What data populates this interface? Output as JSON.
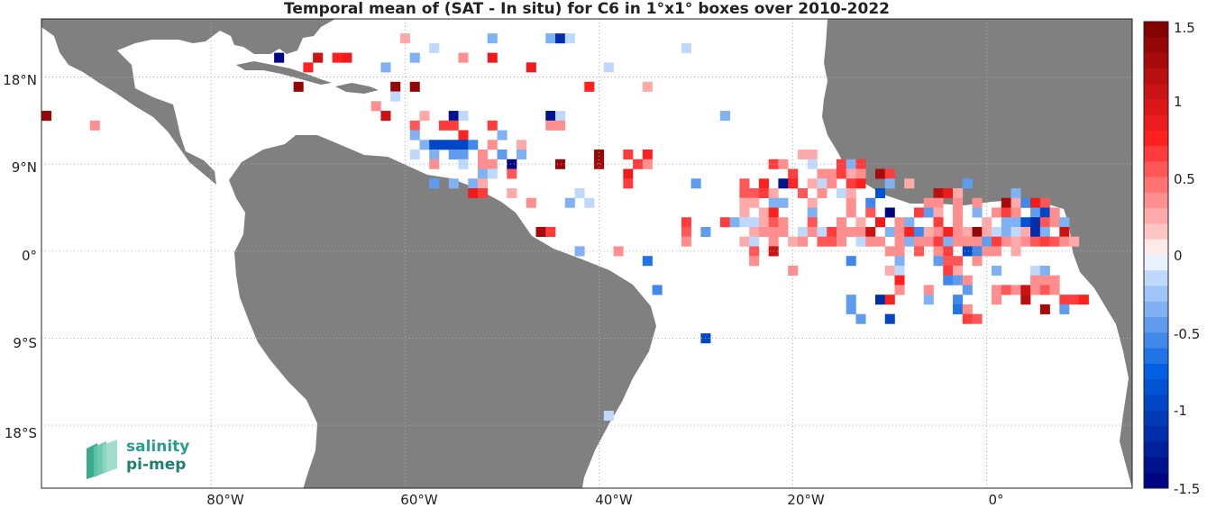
{
  "title": "Temporal mean of (SAT - In situ) for C6 in 1°x1° boxes over 2010-2022",
  "logo": {
    "line1": "salinity",
    "line2": "pi-mep"
  },
  "axes": {
    "x_ticks": [
      "80°W",
      "60°W",
      "40°W",
      "20°W",
      "0°"
    ],
    "y_ticks": [
      "18°N",
      "9°N",
      "0°",
      "9°S",
      "18°S"
    ]
  },
  "colorbar": {
    "ticks": [
      "1.5",
      "1",
      "0.5",
      "0",
      "-0.5",
      "-1",
      "-1.5"
    ],
    "min": -1.5,
    "max": 1.5,
    "levels": 30,
    "colors": {
      "neg_strong": "#00007a",
      "neg_mid": "#0060e0",
      "neg_light": "#cfe3ff",
      "zero": "#ffffff",
      "pos_light": "#ffd4d4",
      "pos_mid": "#ff2020",
      "pos_strong": "#7a0000"
    }
  },
  "land_color": "#808080",
  "chart_data": {
    "type": "heatmap",
    "title": "Temporal mean of (SAT - In situ) for C6 in 1°x1° boxes over 2010-2022",
    "x_range_lon": [
      -97.5,
      15
    ],
    "y_range_lat": [
      -24.5,
      24
    ],
    "value_range": [
      -1.5,
      1.5
    ],
    "cells": [
      [
        -60,
        22,
        0.2
      ],
      [
        -51,
        22,
        -0.3
      ],
      [
        -45,
        22,
        -0.3
      ],
      [
        -44,
        22,
        -1.2
      ],
      [
        -43,
        22,
        -0.2
      ],
      [
        -57,
        21,
        -0.2
      ],
      [
        -31,
        21,
        -0.2
      ],
      [
        -73,
        20,
        -1.5
      ],
      [
        -69,
        20,
        1.0
      ],
      [
        -67,
        20,
        0.8
      ],
      [
        -66,
        20,
        0.9
      ],
      [
        -59,
        20,
        -0.3
      ],
      [
        -54,
        20,
        0.4
      ],
      [
        -51,
        20,
        0.9
      ],
      [
        -47,
        19,
        0.9
      ],
      [
        -70,
        19,
        0.8
      ],
      [
        -62,
        19,
        -0.3
      ],
      [
        -39,
        19,
        -0.2
      ],
      [
        -41,
        17,
        0.8
      ],
      [
        -35,
        17,
        0.2
      ],
      [
        -71,
        17,
        1.4
      ],
      [
        -61,
        17,
        1.4
      ],
      [
        -59,
        17,
        1.4
      ],
      [
        -61,
        16,
        -0.2
      ],
      [
        -63,
        15,
        0.3
      ],
      [
        -97,
        14,
        1.4
      ],
      [
        -62,
        14,
        1.0
      ],
      [
        -58,
        14,
        0.2
      ],
      [
        -55,
        14,
        -1.3
      ],
      [
        -54,
        14,
        -0.2
      ],
      [
        -45,
        14,
        -1.4
      ],
      [
        -44,
        14,
        -0.2
      ],
      [
        -27,
        14,
        -0.3
      ],
      [
        -92,
        13,
        0.3
      ],
      [
        -59,
        13,
        0.5
      ],
      [
        -56,
        13,
        0.6
      ],
      [
        -55,
        13,
        0.6
      ],
      [
        -51,
        13,
        0.6
      ],
      [
        -45,
        13,
        0.4
      ],
      [
        -44,
        13,
        0.4
      ],
      [
        -59,
        12,
        -0.3
      ],
      [
        -54,
        12,
        0.7
      ],
      [
        -50,
        12,
        -0.3
      ],
      [
        -58,
        11,
        -0.3
      ],
      [
        -57,
        11,
        -0.9
      ],
      [
        -56,
        11,
        -0.9
      ],
      [
        -55,
        11,
        -0.9
      ],
      [
        -54,
        11,
        -0.9
      ],
      [
        -53,
        11,
        -0.6
      ],
      [
        -51,
        11,
        0.4
      ],
      [
        -48,
        11,
        0.2
      ],
      [
        -59,
        10,
        -0.2
      ],
      [
        -57,
        10,
        -0.3
      ],
      [
        -55,
        10,
        -0.5
      ],
      [
        -54,
        10,
        -0.5
      ],
      [
        -52,
        10,
        0.4
      ],
      [
        -50,
        10,
        -0.5
      ],
      [
        -48,
        10,
        -0.4
      ],
      [
        -40,
        10,
        1.4
      ],
      [
        -37,
        10,
        0.6
      ],
      [
        -35,
        10,
        0.8
      ],
      [
        -19,
        10,
        0.2
      ],
      [
        -18,
        10,
        0.2
      ],
      [
        -57,
        9,
        0.3
      ],
      [
        -54,
        9,
        -0.2
      ],
      [
        -52,
        9,
        0.4
      ],
      [
        -51,
        9,
        0.4
      ],
      [
        -49,
        9,
        -1.5
      ],
      [
        -44,
        9,
        1.4
      ],
      [
        -40,
        9,
        1.3
      ],
      [
        -36,
        9,
        0.6
      ],
      [
        -35,
        9,
        0.4
      ],
      [
        -22,
        9,
        0.6
      ],
      [
        -21,
        9,
        0.4
      ],
      [
        -18,
        9,
        -0.2
      ],
      [
        -15,
        9,
        0.6
      ],
      [
        -14,
        9,
        -0.3
      ],
      [
        -13,
        9,
        0.6
      ],
      [
        -52,
        8,
        -0.3
      ],
      [
        -51,
        8,
        -0.2
      ],
      [
        -49,
        8,
        0.5
      ],
      [
        -37,
        8,
        0.9
      ],
      [
        -20,
        8,
        0.6
      ],
      [
        -17,
        8,
        0.4
      ],
      [
        -16,
        8,
        0.3
      ],
      [
        -15,
        8,
        0.6
      ],
      [
        -14,
        8,
        0.2
      ],
      [
        -13,
        8,
        0.4
      ],
      [
        -11,
        8,
        1.3
      ],
      [
        -10,
        8,
        0.6
      ],
      [
        -57,
        7,
        -0.5
      ],
      [
        -55,
        7,
        -0.4
      ],
      [
        -53,
        7,
        -0.4
      ],
      [
        -52,
        7,
        0.2
      ],
      [
        -37,
        7,
        0.6
      ],
      [
        -30,
        7,
        -0.5
      ],
      [
        -25,
        7,
        0.5
      ],
      [
        -23,
        7,
        0.7
      ],
      [
        -21,
        7,
        -1.3
      ],
      [
        -20,
        7,
        0.8
      ],
      [
        -18,
        7,
        0.2
      ],
      [
        -17,
        7,
        -0.2
      ],
      [
        -16,
        7,
        0.3
      ],
      [
        -14,
        7,
        0.6
      ],
      [
        -13,
        7,
        0.8
      ],
      [
        -10,
        7,
        -0.4
      ],
      [
        -8,
        7,
        0.2
      ],
      [
        -2,
        7,
        -0.5
      ],
      [
        -53,
        6,
        0.9
      ],
      [
        -52,
        6,
        0.6
      ],
      [
        -49,
        6,
        0.2
      ],
      [
        -42,
        6,
        -0.2
      ],
      [
        -25,
        6,
        0.5
      ],
      [
        -24,
        6,
        0.5
      ],
      [
        -23,
        6,
        0.6
      ],
      [
        -22,
        6,
        0.2
      ],
      [
        -19,
        6,
        0.5
      ],
      [
        -17,
        6,
        0.3
      ],
      [
        -15,
        6,
        -0.2
      ],
      [
        -14,
        6,
        0.2
      ],
      [
        -11,
        6,
        -0.8
      ],
      [
        -5,
        6,
        1.1
      ],
      [
        -4,
        6,
        0.9
      ],
      [
        -3,
        6,
        0.2
      ],
      [
        3,
        6,
        -0.3
      ],
      [
        -47,
        5,
        0.3
      ],
      [
        -43,
        5,
        -0.3
      ],
      [
        -41,
        5,
        -0.2
      ],
      [
        -25,
        5,
        0.2
      ],
      [
        -24,
        5,
        0.2
      ],
      [
        -22,
        5,
        -0.3
      ],
      [
        -21,
        5,
        -0.4
      ],
      [
        -18,
        5,
        0.2
      ],
      [
        -14,
        5,
        0.4
      ],
      [
        -12,
        5,
        -0.6
      ],
      [
        -6,
        5,
        0.4
      ],
      [
        -5,
        5,
        0.3
      ],
      [
        -3,
        5,
        0.4
      ],
      [
        -1,
        5,
        0.3
      ],
      [
        2,
        5,
        1.2
      ],
      [
        3,
        5,
        0.2
      ],
      [
        4,
        5,
        -0.6
      ],
      [
        5,
        5,
        0.9
      ],
      [
        6,
        5,
        0.5
      ],
      [
        -25,
        4,
        0.2
      ],
      [
        -23,
        4,
        0.2
      ],
      [
        -22,
        4,
        0.7
      ],
      [
        -18,
        4,
        -0.3
      ],
      [
        -14,
        4,
        0.4
      ],
      [
        -12,
        4,
        0.5
      ],
      [
        -10,
        4,
        -1.5
      ],
      [
        -7,
        4,
        0.6
      ],
      [
        -6,
        4,
        -0.5
      ],
      [
        -5,
        4,
        0.2
      ],
      [
        -3,
        4,
        0.3
      ],
      [
        -1,
        4,
        -0.4
      ],
      [
        1,
        4,
        0.3
      ],
      [
        2,
        4,
        0.6
      ],
      [
        3,
        4,
        0.4
      ],
      [
        5,
        4,
        -0.5
      ],
      [
        6,
        4,
        -0.9
      ],
      [
        7,
        4,
        0.3
      ],
      [
        -31,
        3,
        0.6
      ],
      [
        -27,
        3,
        0.6
      ],
      [
        -26,
        3,
        -0.4
      ],
      [
        -25,
        3,
        -0.2
      ],
      [
        -24,
        3,
        -0.2
      ],
      [
        -23,
        3,
        0.2
      ],
      [
        -22,
        3,
        0.5
      ],
      [
        -21,
        3,
        0.3
      ],
      [
        -18,
        3,
        0.5
      ],
      [
        -15,
        3,
        0.3
      ],
      [
        -13,
        3,
        0.2
      ],
      [
        -11,
        3,
        0.9
      ],
      [
        -9,
        3,
        0.4
      ],
      [
        -8,
        3,
        -0.3
      ],
      [
        -5,
        3,
        0.6
      ],
      [
        -3,
        3,
        0.3
      ],
      [
        0,
        3,
        0.2
      ],
      [
        2,
        3,
        -0.4
      ],
      [
        3,
        3,
        -0.4
      ],
      [
        4,
        3,
        -0.8
      ],
      [
        5,
        3,
        -1.2
      ],
      [
        6,
        3,
        0.5
      ],
      [
        7,
        3,
        0.4
      ],
      [
        8,
        3,
        -0.3
      ],
      [
        -46,
        2,
        1.3
      ],
      [
        -45,
        2,
        0.6
      ],
      [
        -31,
        2,
        0.5
      ],
      [
        -29,
        2,
        -0.5
      ],
      [
        -24,
        2,
        0.2
      ],
      [
        -23,
        2,
        0.3
      ],
      [
        -22,
        2,
        0.3
      ],
      [
        -21,
        2,
        0.3
      ],
      [
        -19,
        2,
        -0.2
      ],
      [
        -18,
        2,
        0.3
      ],
      [
        -17,
        2,
        -0.2
      ],
      [
        -16,
        2,
        0.6
      ],
      [
        -15,
        2,
        0.3
      ],
      [
        -14,
        2,
        0.4
      ],
      [
        -13,
        2,
        0.4
      ],
      [
        -12,
        2,
        1.0
      ],
      [
        -10,
        2,
        -0.3
      ],
      [
        -9,
        2,
        0.3
      ],
      [
        -8,
        2,
        0.8
      ],
      [
        -7,
        2,
        -0.6
      ],
      [
        -6,
        2,
        0.2
      ],
      [
        -5,
        2,
        0.4
      ],
      [
        -4,
        2,
        0.8
      ],
      [
        -3,
        2,
        0.4
      ],
      [
        -2,
        2,
        0.2
      ],
      [
        -1,
        2,
        1.4
      ],
      [
        0,
        2,
        0.2
      ],
      [
        1,
        2,
        -0.2
      ],
      [
        2,
        2,
        -0.4
      ],
      [
        3,
        2,
        -0.2
      ],
      [
        4,
        2,
        0.2
      ],
      [
        5,
        2,
        -1.1
      ],
      [
        6,
        2,
        -0.3
      ],
      [
        8,
        2,
        1.0
      ],
      [
        -31,
        1,
        0.3
      ],
      [
        -25,
        1,
        0.2
      ],
      [
        -24,
        1,
        -0.2
      ],
      [
        -22,
        1,
        0.3
      ],
      [
        -20,
        1,
        0.2
      ],
      [
        -19,
        1,
        0.4
      ],
      [
        -17,
        1,
        0.5
      ],
      [
        -16,
        1,
        0.5
      ],
      [
        -15,
        1,
        0.3
      ],
      [
        -13,
        1,
        -0.2
      ],
      [
        -12,
        1,
        0.3
      ],
      [
        -11,
        1,
        0.3
      ],
      [
        -9,
        1,
        0.3
      ],
      [
        -8,
        1,
        -0.3
      ],
      [
        -7,
        1,
        0.4
      ],
      [
        -6,
        1,
        0.3
      ],
      [
        -5,
        1,
        0.6
      ],
      [
        -4,
        1,
        -0.3
      ],
      [
        -3,
        1,
        0.3
      ],
      [
        -2,
        1,
        0.3
      ],
      [
        -1,
        1,
        0.3
      ],
      [
        0,
        1,
        -0.5
      ],
      [
        1,
        1,
        0.6
      ],
      [
        2,
        1,
        0.4
      ],
      [
        3,
        1,
        0.2
      ],
      [
        4,
        1,
        0.4
      ],
      [
        5,
        1,
        0.5
      ],
      [
        6,
        1,
        0.6
      ],
      [
        7,
        1,
        0.5
      ],
      [
        8,
        1,
        0.4
      ],
      [
        9,
        1,
        0.2
      ],
      [
        -42,
        0,
        -0.3
      ],
      [
        -38,
        0,
        0.4
      ],
      [
        -24,
        0,
        0.5
      ],
      [
        -22,
        0,
        1.0
      ],
      [
        -10,
        0,
        0.3
      ],
      [
        -9,
        0,
        0.4
      ],
      [
        -7,
        0,
        0.5
      ],
      [
        -5,
        0,
        0.3
      ],
      [
        -4,
        0,
        0.6
      ],
      [
        -2,
        0,
        -1.0
      ],
      [
        -1,
        0,
        -0.6
      ],
      [
        0,
        0,
        0.4
      ],
      [
        1,
        0,
        0.3
      ],
      [
        3,
        0,
        0.2
      ],
      [
        -35,
        -1,
        -0.7
      ],
      [
        -24,
        -1,
        0.3
      ],
      [
        -14,
        -1,
        -0.6
      ],
      [
        -9,
        -1,
        -0.3
      ],
      [
        -5,
        -1,
        -0.5
      ],
      [
        -4,
        -1,
        0.5
      ],
      [
        -3,
        -1,
        0.5
      ],
      [
        -1,
        -1,
        0.4
      ],
      [
        -20,
        -2,
        0.3
      ],
      [
        -10,
        -2,
        0.2
      ],
      [
        -4,
        -2,
        0.6
      ],
      [
        -3,
        -2,
        0.2
      ],
      [
        -9,
        -2,
        -0.2
      ],
      [
        1,
        -2,
        -0.4
      ],
      [
        5,
        -2,
        -0.2
      ],
      [
        6,
        -2,
        -0.3
      ],
      [
        -9,
        -3,
        0.7
      ],
      [
        -4,
        -3,
        -0.6
      ],
      [
        -3,
        -3,
        -0.5
      ],
      [
        -2,
        -3,
        0.3
      ],
      [
        5,
        -3,
        0.4
      ],
      [
        6,
        -3,
        0.3
      ],
      [
        7,
        -3,
        0.3
      ],
      [
        -34,
        -4,
        -0.6
      ],
      [
        -9,
        -4,
        0.3
      ],
      [
        -6,
        -4,
        0.3
      ],
      [
        -2,
        -4,
        -0.5
      ],
      [
        1,
        -4,
        0.3
      ],
      [
        2,
        -4,
        0.5
      ],
      [
        3,
        -4,
        0.4
      ],
      [
        4,
        -4,
        1.0
      ],
      [
        5,
        -4,
        0.4
      ],
      [
        6,
        -4,
        0.5
      ],
      [
        7,
        -4,
        0.3
      ],
      [
        -14,
        -5,
        -0.5
      ],
      [
        -11,
        -5,
        -1.2
      ],
      [
        -10,
        -5,
        0.8
      ],
      [
        -6,
        -5,
        -0.3
      ],
      [
        -3,
        -5,
        -0.6
      ],
      [
        1,
        -5,
        0.4
      ],
      [
        4,
        -5,
        1.1
      ],
      [
        8,
        -5,
        0.6
      ],
      [
        9,
        -5,
        0.6
      ],
      [
        10,
        -5,
        0.7
      ],
      [
        -14,
        -6,
        -0.5
      ],
      [
        -3,
        -6,
        -0.7
      ],
      [
        -2,
        -6,
        0.3
      ],
      [
        6,
        -6,
        1.2
      ],
      [
        8,
        -6,
        -0.5
      ],
      [
        -13,
        -7,
        -0.5
      ],
      [
        -10,
        -7,
        -1.0
      ],
      [
        -2,
        -7,
        0.6
      ],
      [
        -1,
        -7,
        0.5
      ],
      [
        -29,
        -9,
        -0.9
      ],
      [
        -39,
        -17,
        -0.2
      ]
    ]
  }
}
